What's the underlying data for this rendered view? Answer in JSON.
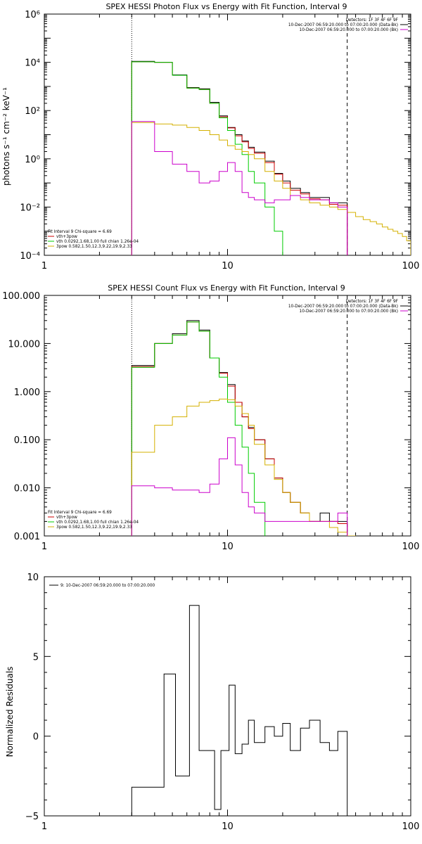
{
  "chart_data": [
    {
      "type": "line",
      "title": "SPEX HESSI Photon Flux vs Energy with Fit Function, Interval 9",
      "xlabel": "",
      "ylabel": "photons s⁻¹ cm⁻² keV⁻¹",
      "xscale": "log",
      "yscale": "log",
      "xlim": [
        1,
        100
      ],
      "ylim": [
        0.0001,
        1000000
      ],
      "x_tick_labels": [
        "1",
        "10",
        "100"
      ],
      "y_tick_labels": [
        "10⁻⁴",
        "10⁻²",
        "10⁰",
        "10²",
        "10⁴",
        "10⁶"
      ],
      "vlines": [
        {
          "x": 3.0,
          "style": "dotted"
        },
        {
          "x": 45.0,
          "style": "dashed"
        }
      ],
      "legend_top_right": [
        {
          "text": "Detectors: 1F 3F 4F 6F 9F",
          "color": ""
        },
        {
          "text": "10-Dec-2007 06:59:20.000 to 07:00:20.000 (Data-Bk)",
          "color": "#000000"
        },
        {
          "text": "10-Dec-2007 06:59:20.000 to 07:00:20.000 (Bk)",
          "color": "#cc00cc"
        }
      ],
      "legend_bottom_left": [
        {
          "text": "Fit Interval 9   Chi-square = 6.69",
          "color": ""
        },
        {
          "text": "vth+3pow",
          "color": "#cc0000"
        },
        {
          "text": "vth 0.0292,1.68,1.00  full chian 1.26e-04",
          "color": "#00cc00"
        },
        {
          "text": "3pow 0.582,1.50,12.3,9.22,19.9,2.33",
          "color": "#d4b000"
        }
      ],
      "series": [
        {
          "color": "#000000",
          "edges": [
            3,
            4,
            5,
            6,
            7,
            8,
            9,
            10,
            11,
            12,
            13,
            14,
            16,
            18,
            20,
            22,
            25,
            28,
            32,
            36,
            40,
            45
          ],
          "values": [
            11000,
            10000,
            3000,
            900,
            800,
            220,
            60,
            20,
            10,
            5.5,
            3,
            1.9,
            0.8,
            0.25,
            0.12,
            0.06,
            0.04,
            0.025,
            0.025,
            0.015,
            0.015
          ]
        },
        {
          "color": "#cc0000",
          "edges": [
            3,
            4,
            5,
            6,
            7,
            8,
            9,
            10,
            11,
            12,
            13,
            14,
            16,
            18,
            20,
            22,
            25,
            28,
            32,
            36,
            40,
            45
          ],
          "values": [
            10500,
            10000,
            2900,
            850,
            750,
            200,
            55,
            19,
            9,
            5,
            2.7,
            1.7,
            0.7,
            0.23,
            0.1,
            0.05,
            0.035,
            0.022,
            0.02,
            0.013,
            0.012
          ]
        },
        {
          "color": "#00cc00",
          "edges": [
            3,
            4,
            5,
            6,
            7,
            8,
            9,
            10,
            11,
            12,
            13,
            14,
            16,
            18,
            20,
            22
          ],
          "values": [
            10500,
            10000,
            2900,
            850,
            750,
            200,
            50,
            15,
            4,
            1.5,
            0.3,
            0.1,
            0.01,
            0.001,
            2e-05
          ]
        },
        {
          "color": "#d4b000",
          "edges": [
            3,
            4,
            5,
            6,
            7,
            8,
            9,
            10,
            11,
            12,
            13,
            14,
            16,
            18,
            20,
            22,
            25,
            28,
            32,
            36,
            40,
            45,
            50,
            55,
            60,
            65,
            70,
            75,
            80,
            85,
            90,
            95,
            100
          ],
          "values": [
            32,
            28,
            25,
            20,
            15,
            10,
            6,
            3.5,
            2.5,
            2,
            1.5,
            1,
            0.3,
            0.12,
            0.06,
            0.03,
            0.02,
            0.015,
            0.012,
            0.01,
            0.008,
            0.006,
            0.004,
            0.003,
            0.0025,
            0.002,
            0.0015,
            0.0012,
            0.001,
            0.0008,
            0.0006,
            0.0004
          ]
        },
        {
          "color": "#cc00cc",
          "edges": [
            3,
            4,
            5,
            6,
            7,
            8,
            9,
            10,
            11,
            12,
            13,
            14,
            16,
            18,
            20,
            22,
            25,
            28,
            32,
            36,
            40,
            45
          ],
          "values": [
            35,
            2,
            0.6,
            0.3,
            0.1,
            0.12,
            0.3,
            0.7,
            0.3,
            0.04,
            0.025,
            0.02,
            0.015,
            0.02,
            0.02,
            0.03,
            0.025,
            0.02,
            0.02,
            0.015,
            0.01
          ]
        }
      ]
    },
    {
      "type": "line",
      "title": "SPEX HESSI Count Flux vs Energy with Fit Function, Interval 9",
      "xlabel": "",
      "ylabel": "",
      "xscale": "log",
      "yscale": "log",
      "xlim": [
        1,
        100
      ],
      "ylim": [
        0.001,
        100
      ],
      "x_tick_labels": [
        "1",
        "10",
        "100"
      ],
      "y_tick_labels": [
        "0.001",
        "0.010",
        "0.100",
        "1.000",
        "10.000",
        "100.000"
      ],
      "vlines": [
        {
          "x": 3.0,
          "style": "dotted"
        },
        {
          "x": 45.0,
          "style": "dashed"
        }
      ],
      "legend_top_right": [
        {
          "text": "Detectors: 1F 3F 4F 6F 9F",
          "color": ""
        },
        {
          "text": "10-Dec-2007 06:59:20.000 to 07:00:20.000 (Data-Bk)",
          "color": "#000000"
        },
        {
          "text": "10-Dec-2007 06:59:20.000 to 07:00:20.000 (Bk)",
          "color": "#cc00cc"
        }
      ],
      "legend_bottom_left": [
        {
          "text": "Fit Interval 9   Chi-square = 6.69",
          "color": ""
        },
        {
          "text": "vth+3pow",
          "color": "#cc0000"
        },
        {
          "text": "vth 0.0292,1.68,1.00  full chian 1.26e-04",
          "color": "#00cc00"
        },
        {
          "text": "3pow 0.582,1.50,12.3,9.22,19.9,2.33",
          "color": "#d4b000"
        }
      ],
      "series": [
        {
          "color": "#000000",
          "edges": [
            3,
            4,
            5,
            6,
            7,
            8,
            9,
            10,
            11,
            12,
            13,
            14,
            16,
            18,
            20,
            22,
            25,
            28,
            32,
            36,
            40,
            45
          ],
          "values": [
            3.5,
            10,
            16,
            30,
            19,
            5,
            2.5,
            1.4,
            0.6,
            0.3,
            0.18,
            0.1,
            0.04,
            0.016,
            0.008,
            0.005,
            0.003,
            0.002,
            0.003,
            0.002,
            0.002
          ]
        },
        {
          "color": "#cc0000",
          "edges": [
            3,
            4,
            5,
            6,
            7,
            8,
            9,
            10,
            11,
            12,
            13,
            14,
            16,
            18,
            20,
            22,
            25,
            28,
            32,
            36,
            40,
            45
          ],
          "values": [
            3.3,
            10,
            15,
            28,
            18,
            5,
            2.4,
            1.3,
            0.6,
            0.3,
            0.17,
            0.1,
            0.04,
            0.016,
            0.008,
            0.005,
            0.003,
            0.002,
            0.002,
            0.002,
            0.0018
          ]
        },
        {
          "color": "#00cc00",
          "edges": [
            3,
            4,
            5,
            6,
            7,
            8,
            9,
            10,
            11,
            12,
            13,
            14,
            16
          ],
          "values": [
            3.2,
            10,
            15,
            28,
            18,
            5,
            2,
            0.6,
            0.2,
            0.07,
            0.02,
            0.005
          ]
        },
        {
          "color": "#d4b000",
          "edges": [
            3,
            4,
            5,
            6,
            7,
            8,
            9,
            10,
            11,
            12,
            13,
            14,
            16,
            18,
            20,
            22,
            25,
            28,
            32,
            36,
            40,
            45,
            50,
            55
          ],
          "values": [
            0.055,
            0.2,
            0.3,
            0.5,
            0.6,
            0.65,
            0.7,
            0.68,
            0.5,
            0.35,
            0.2,
            0.08,
            0.03,
            0.015,
            0.008,
            0.005,
            0.003,
            0.002,
            0.002,
            0.0015,
            0.0012,
            0.001,
            0.0009
          ]
        },
        {
          "color": "#cc00cc",
          "edges": [
            3,
            4,
            5,
            6,
            7,
            8,
            9,
            10,
            11,
            12,
            13,
            14,
            16,
            18,
            20,
            22,
            25,
            28,
            32,
            36,
            40,
            45
          ],
          "values": [
            0.011,
            0.01,
            0.009,
            0.009,
            0.008,
            0.012,
            0.04,
            0.11,
            0.03,
            0.008,
            0.004,
            0.003,
            0.002,
            0.002,
            0.002,
            0.002,
            0.002,
            0.002,
            0.002,
            0.002,
            0.003
          ]
        }
      ]
    },
    {
      "type": "line",
      "title": "",
      "xlabel": "",
      "ylabel": "Normalized Residuals",
      "xscale": "log",
      "yscale": "linear",
      "xlim": [
        1,
        100
      ],
      "ylim": [
        -5,
        10
      ],
      "x_tick_labels": [
        "1",
        "10",
        "100"
      ],
      "y_tick_labels": [
        "−5",
        "0",
        "5",
        "10"
      ],
      "legend_top_left": [
        {
          "text": "9: 10-Dec-2007 06:59:20.000 to 07:00:20.000",
          "color": "#000000"
        }
      ],
      "series": [
        {
          "color": "#000000",
          "edges": [
            3,
            3.5,
            4.5,
            5.2,
            6.2,
            7,
            7.8,
            8.5,
            9.2,
            10.2,
            11,
            12,
            13,
            14,
            16,
            18,
            20,
            22,
            25,
            28,
            32,
            36,
            40,
            45
          ],
          "values": [
            -3.2,
            -3.2,
            3.9,
            -2.5,
            8.2,
            -0.9,
            -0.9,
            -4.6,
            -0.9,
            3.2,
            -1.1,
            -0.5,
            1.0,
            -0.4,
            0.6,
            0.0,
            0.8,
            -0.9,
            0.5,
            1.0,
            -0.4,
            -0.9,
            0.3
          ]
        }
      ]
    }
  ]
}
